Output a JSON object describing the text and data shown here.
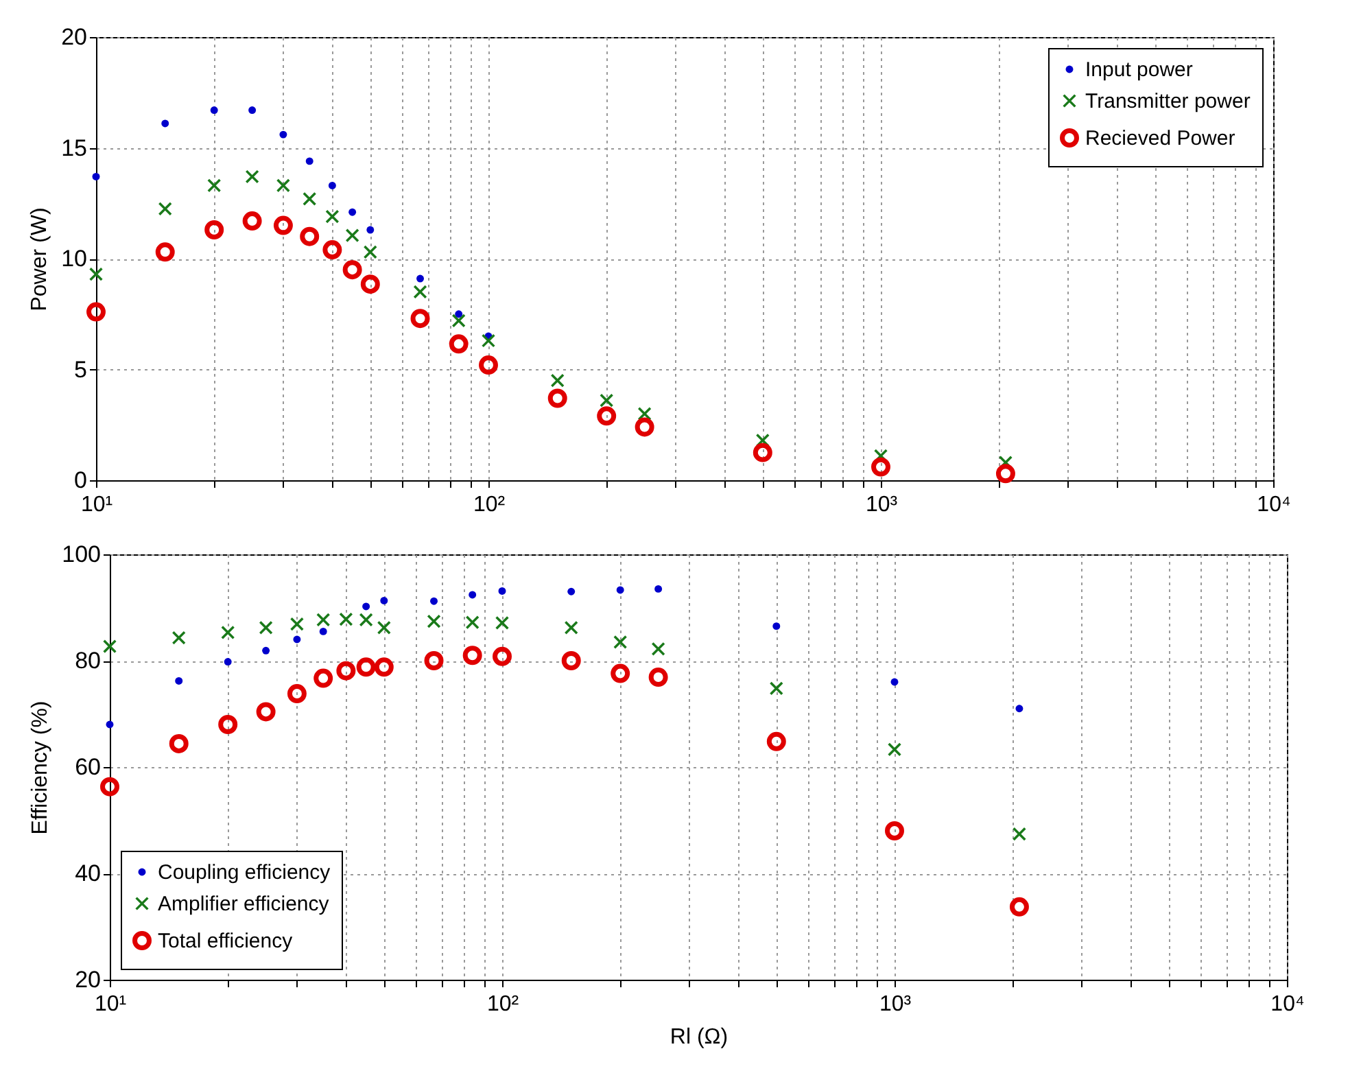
{
  "chart_data": [
    {
      "type": "scatter",
      "ylabel": "Power (W)",
      "log": "x",
      "grid": true,
      "legend": "top right",
      "x": [
        10,
        15,
        20,
        25,
        30,
        35,
        40,
        45,
        50,
        67,
        84,
        100,
        150,
        200,
        250,
        500,
        1000,
        2080
      ],
      "xlim": [
        10,
        10000
      ],
      "xticks": [
        {
          "value": 10,
          "label": "10¹"
        },
        {
          "value": 20,
          "label": null
        },
        {
          "value": 30,
          "label": null
        },
        {
          "value": 40,
          "label": null
        },
        {
          "value": 50,
          "label": null
        },
        {
          "value": 60,
          "label": null
        },
        {
          "value": 70,
          "label": null
        },
        {
          "value": 80,
          "label": null
        },
        {
          "value": 90,
          "label": null
        },
        {
          "value": 100,
          "label": "10²"
        },
        {
          "value": 200,
          "label": null
        },
        {
          "value": 300,
          "label": null
        },
        {
          "value": 400,
          "label": null
        },
        {
          "value": 500,
          "label": null
        },
        {
          "value": 600,
          "label": null
        },
        {
          "value": 700,
          "label": null
        },
        {
          "value": 800,
          "label": null
        },
        {
          "value": 900,
          "label": null
        },
        {
          "value": 1000,
          "label": "10³"
        },
        {
          "value": 2000,
          "label": null
        },
        {
          "value": 3000,
          "label": null
        },
        {
          "value": 4000,
          "label": null
        },
        {
          "value": 5000,
          "label": null
        },
        {
          "value": 6000,
          "label": null
        },
        {
          "value": 7000,
          "label": null
        },
        {
          "value": 8000,
          "label": null
        },
        {
          "value": 9000,
          "label": null
        },
        {
          "value": 10000,
          "label": "10⁴"
        }
      ],
      "ylim": [
        0,
        20
      ],
      "yticks": [
        0,
        5,
        10,
        15,
        20
      ],
      "series": [
        {
          "name": "Input power",
          "color": "#0000cc",
          "marker": "point",
          "values": [
            13.7,
            16.1,
            16.7,
            16.7,
            15.6,
            14.4,
            13.3,
            12.1,
            11.3,
            9.1,
            7.5,
            6.5,
            null,
            null,
            null,
            null,
            null,
            null
          ]
        },
        {
          "name": "Transmitter power",
          "color": "#1a7a1a",
          "marker": "cross",
          "values": [
            9.3,
            12.25,
            13.3,
            13.7,
            13.3,
            12.7,
            11.9,
            11.05,
            10.3,
            8.5,
            7.2,
            6.3,
            4.5,
            3.6,
            3.0,
            1.8,
            1.1,
            0.8
          ]
        },
        {
          "name": "Recieved Power",
          "color": "#e00000",
          "marker": "circle",
          "values": [
            7.6,
            10.3,
            11.3,
            11.7,
            11.5,
            11.0,
            10.4,
            9.5,
            8.85,
            7.3,
            6.15,
            5.2,
            3.7,
            2.9,
            2.4,
            1.25,
            0.6,
            0.3
          ]
        }
      ]
    },
    {
      "type": "scatter",
      "xlabel": "Rl (Ω)",
      "ylabel": "Efficiency (%)",
      "log": "x",
      "grid": true,
      "legend": "bottom left",
      "x": [
        10,
        15,
        20,
        25,
        30,
        35,
        40,
        45,
        50,
        67,
        84,
        100,
        150,
        200,
        250,
        500,
        1000,
        2080
      ],
      "xlim": [
        10,
        10000
      ],
      "xticks": [
        {
          "value": 10,
          "label": "10¹"
        },
        {
          "value": 20,
          "label": null
        },
        {
          "value": 30,
          "label": null
        },
        {
          "value": 40,
          "label": null
        },
        {
          "value": 50,
          "label": null
        },
        {
          "value": 60,
          "label": null
        },
        {
          "value": 70,
          "label": null
        },
        {
          "value": 80,
          "label": null
        },
        {
          "value": 90,
          "label": null
        },
        {
          "value": 100,
          "label": "10²"
        },
        {
          "value": 200,
          "label": null
        },
        {
          "value": 300,
          "label": null
        },
        {
          "value": 400,
          "label": null
        },
        {
          "value": 500,
          "label": null
        },
        {
          "value": 600,
          "label": null
        },
        {
          "value": 700,
          "label": null
        },
        {
          "value": 800,
          "label": null
        },
        {
          "value": 900,
          "label": null
        },
        {
          "value": 1000,
          "label": "10³"
        },
        {
          "value": 2000,
          "label": null
        },
        {
          "value": 3000,
          "label": null
        },
        {
          "value": 4000,
          "label": null
        },
        {
          "value": 5000,
          "label": null
        },
        {
          "value": 6000,
          "label": null
        },
        {
          "value": 7000,
          "label": null
        },
        {
          "value": 8000,
          "label": null
        },
        {
          "value": 9000,
          "label": null
        },
        {
          "value": 10000,
          "label": "10⁴"
        }
      ],
      "ylim": [
        20,
        100
      ],
      "yticks": [
        20,
        40,
        60,
        80,
        100
      ],
      "series": [
        {
          "name": "Coupling efficiency",
          "color": "#0000cc",
          "marker": "point",
          "values": [
            68.0,
            76.2,
            79.8,
            81.9,
            84.0,
            85.5,
            null,
            90.2,
            91.3,
            91.2,
            92.4,
            93.1,
            93.0,
            93.3,
            93.5,
            86.5,
            76.0,
            71.0
          ]
        },
        {
          "name": "Amplifier efficiency",
          "color": "#1a7a1a",
          "marker": "cross",
          "values": [
            82.7,
            84.3,
            85.3,
            86.2,
            86.9,
            87.7,
            87.8,
            87.7,
            86.2,
            87.4,
            87.2,
            87.1,
            86.2,
            83.5,
            82.2,
            74.8,
            63.3,
            47.4
          ]
        },
        {
          "name": "Total efficiency",
          "color": "#e00000",
          "marker": "circle",
          "values": [
            56.3,
            64.4,
            68.0,
            70.4,
            73.8,
            76.7,
            78.1,
            78.8,
            78.8,
            80.0,
            81.0,
            80.8,
            80.0,
            77.6,
            76.9,
            64.8,
            48.0,
            33.7
          ]
        }
      ]
    }
  ]
}
